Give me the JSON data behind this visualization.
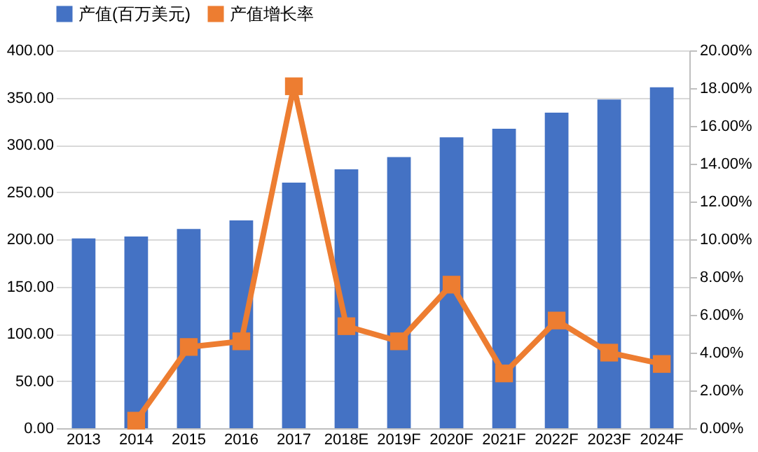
{
  "chart_data": {
    "type": "bar",
    "categories": [
      "2013",
      "2014",
      "2015",
      "2016",
      "2017",
      "2018E",
      "2019F",
      "2020F",
      "2021F",
      "2022F",
      "2023F",
      "2024F"
    ],
    "series": [
      {
        "name": "产值(百万美元)",
        "color": "#4472c4",
        "values": [
          201,
          203,
          211,
          220,
          260,
          274,
          287,
          308,
          317,
          334,
          348,
          361
        ]
      },
      {
        "name": "产值增长率",
        "type": "line",
        "axis": "y2",
        "color": "#ed7d31",
        "marker": "square",
        "values": [
          null,
          0.4,
          4.3,
          4.6,
          18.1,
          5.4,
          4.6,
          7.6,
          2.9,
          5.7,
          4.0,
          3.4
        ]
      }
    ],
    "ylim": [
      0,
      400
    ],
    "yticks": [
      {
        "value": 0,
        "label": "0.00"
      },
      {
        "value": 50,
        "label": "50.00"
      },
      {
        "value": 100,
        "label": "100.00"
      },
      {
        "value": 150,
        "label": "150.00"
      },
      {
        "value": 200,
        "label": "200.00"
      },
      {
        "value": 250,
        "label": "250.00"
      },
      {
        "value": 300,
        "label": "300.00"
      },
      {
        "value": 350,
        "label": "350.00"
      },
      {
        "value": 400,
        "label": "400.00"
      }
    ],
    "y2lim": [
      0,
      20
    ],
    "y2ticks": [
      {
        "value": 0,
        "label": "0.00%"
      },
      {
        "value": 2,
        "label": "2.00%"
      },
      {
        "value": 4,
        "label": "4.00%"
      },
      {
        "value": 6,
        "label": "6.00%"
      },
      {
        "value": 8,
        "label": "8.00%"
      },
      {
        "value": 10,
        "label": "10.00%"
      },
      {
        "value": 12,
        "label": "12.00%"
      },
      {
        "value": 14,
        "label": "14.00%"
      },
      {
        "value": 16,
        "label": "16.00%"
      },
      {
        "value": 18,
        "label": "18.00%"
      },
      {
        "value": 20,
        "label": "20.00%"
      }
    ],
    "grid": "y",
    "legend": "top"
  }
}
